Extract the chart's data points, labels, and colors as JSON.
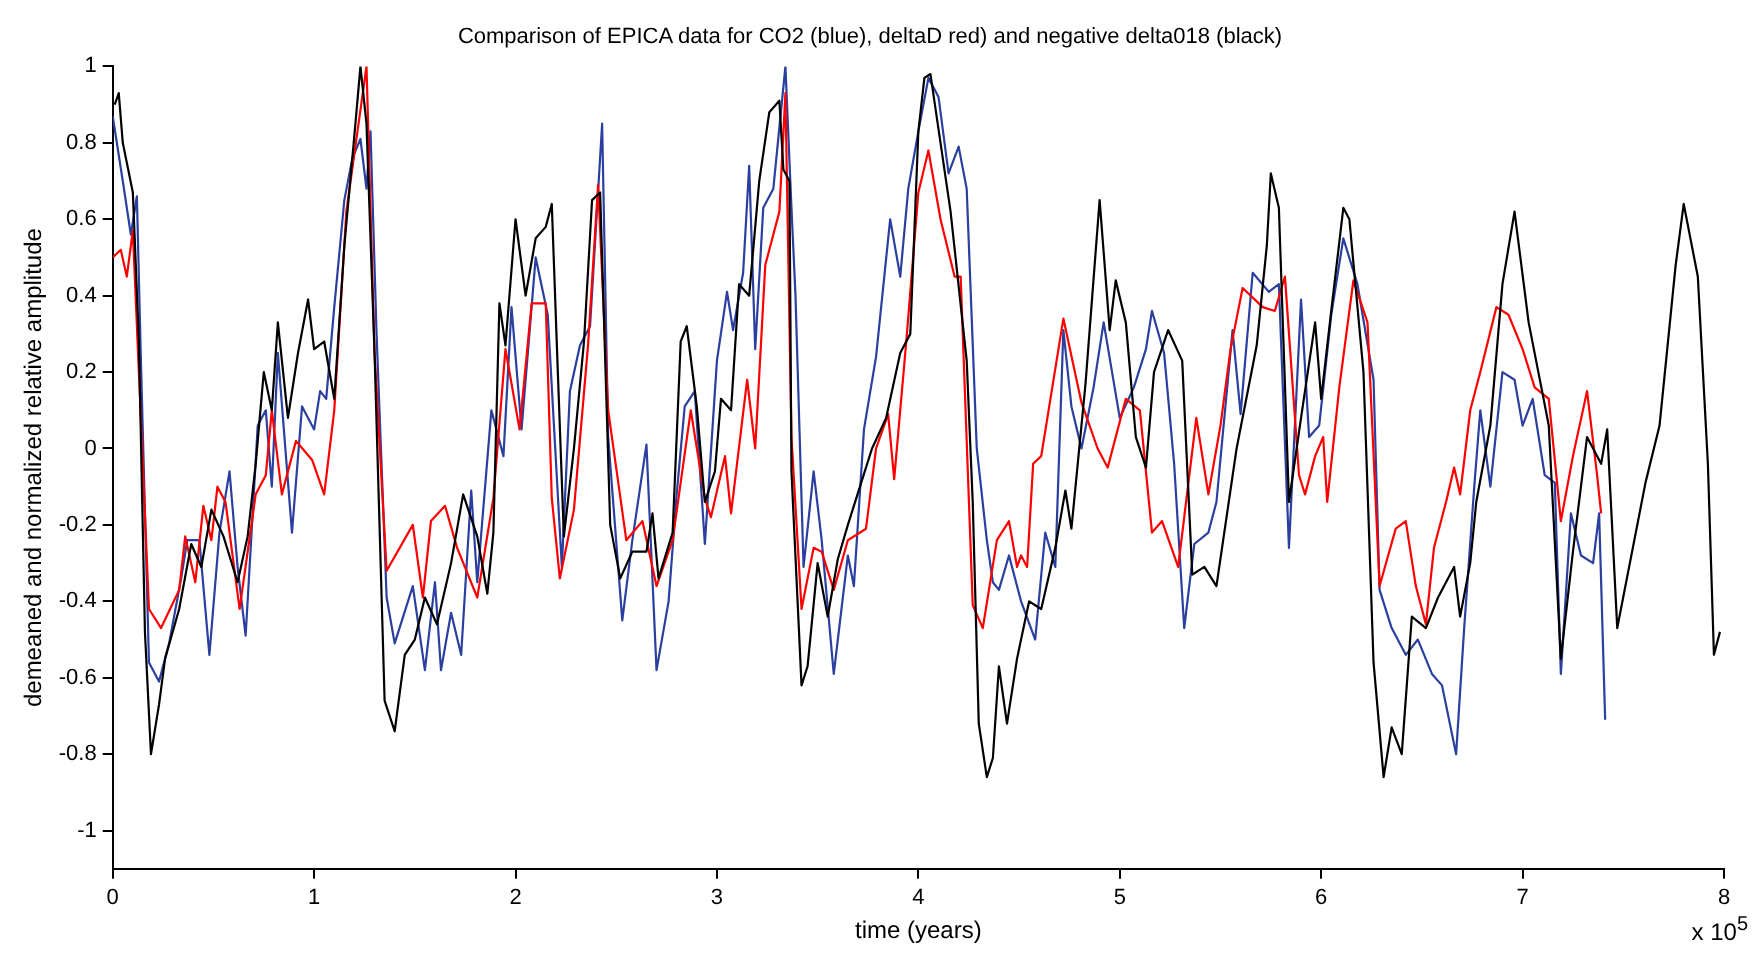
{
  "chart_data": {
    "type": "line",
    "title": "Comparison of EPICA data for CO2 (blue), deltaD red) and negative delta018 (black)",
    "xlabel": "time (years)",
    "ylabel": "demeaned and normalized relative amplitude",
    "annotations": [
      "x 10$^{5}$"
    ],
    "xlim": [
      0,
      8
    ],
    "xticks": [
      0,
      1,
      2,
      3,
      4,
      5,
      6,
      7,
      8
    ],
    "ylim": [
      -1.1,
      1
    ],
    "yticks": [
      -1,
      -0.8,
      -0.6,
      -0.4,
      -0.2,
      0,
      0.2,
      0.4,
      0.6,
      0.8,
      1
    ],
    "grid": false,
    "legend": false,
    "marker": "none",
    "line_style": "solid",
    "series": [
      {
        "color": "#000000",
        "x": [
          0.01,
          0.03,
          0.05,
          0.1,
          0.13,
          0.16,
          0.19,
          0.23,
          0.26,
          0.33,
          0.39,
          0.44,
          0.49,
          0.55,
          0.62,
          0.67,
          0.71,
          0.75,
          0.79,
          0.82,
          0.87,
          0.92,
          0.97,
          1.0,
          1.05,
          1.1,
          1.15,
          1.2,
          1.23,
          1.26,
          1.3,
          1.35,
          1.4,
          1.45,
          1.5,
          1.55,
          1.61,
          1.68,
          1.74,
          1.81,
          1.86,
          1.89,
          1.92,
          1.95,
          2.0,
          2.05,
          2.1,
          2.15,
          2.18,
          2.21,
          2.24,
          2.29,
          2.34,
          2.38,
          2.42,
          2.47,
          2.52,
          2.58,
          2.65,
          2.68,
          2.71,
          2.78,
          2.82,
          2.85,
          2.9,
          2.94,
          2.99,
          3.02,
          3.07,
          3.11,
          3.16,
          3.21,
          3.26,
          3.31,
          3.33,
          3.36,
          3.37,
          3.42,
          3.45,
          3.5,
          3.55,
          3.6,
          3.65,
          3.71,
          3.77,
          3.84,
          3.91,
          3.96,
          4.0,
          4.03,
          4.06,
          4.16,
          4.24,
          4.27,
          4.3,
          4.34,
          4.37,
          4.4,
          4.44,
          4.49,
          4.55,
          4.61,
          4.68,
          4.73,
          4.76,
          4.83,
          4.9,
          4.95,
          4.98,
          5.03,
          5.08,
          5.13,
          5.17,
          5.24,
          5.31,
          5.36,
          5.42,
          5.48,
          5.58,
          5.68,
          5.73,
          5.75,
          5.79,
          5.84,
          5.9,
          5.97,
          6.0,
          6.05,
          6.11,
          6.14,
          6.21,
          6.26,
          6.31,
          6.35,
          6.4,
          6.45,
          6.52,
          6.58,
          6.66,
          6.69,
          6.74,
          6.77,
          6.84,
          6.9,
          6.96,
          7.03,
          7.13,
          7.19,
          7.25,
          7.32,
          7.39,
          7.42,
          7.47,
          7.61,
          7.68,
          7.76,
          7.8,
          7.87,
          7.92,
          7.95,
          7.98
        ],
        "values": [
          0.9,
          0.93,
          0.8,
          0.67,
          0.28,
          -0.48,
          -0.8,
          -0.67,
          -0.55,
          -0.42,
          -0.25,
          -0.31,
          -0.16,
          -0.23,
          -0.35,
          -0.23,
          -0.04,
          0.2,
          0.1,
          0.33,
          0.08,
          0.25,
          0.39,
          0.26,
          0.28,
          0.13,
          0.53,
          0.82,
          1.0,
          0.85,
          0.25,
          -0.66,
          -0.74,
          -0.54,
          -0.5,
          -0.39,
          -0.46,
          -0.3,
          -0.12,
          -0.23,
          -0.38,
          -0.22,
          0.38,
          0.27,
          0.6,
          0.4,
          0.55,
          0.58,
          0.64,
          0.2,
          -0.23,
          0.0,
          0.28,
          0.65,
          0.67,
          -0.2,
          -0.34,
          -0.27,
          -0.27,
          -0.17,
          -0.34,
          -0.22,
          0.28,
          0.32,
          0.11,
          -0.14,
          -0.06,
          0.13,
          0.1,
          0.43,
          0.4,
          0.7,
          0.88,
          0.91,
          0.73,
          0.7,
          -0.06,
          -0.62,
          -0.57,
          -0.3,
          -0.44,
          -0.29,
          -0.2,
          -0.1,
          0.0,
          0.08,
          0.25,
          0.3,
          0.83,
          0.97,
          0.98,
          0.62,
          0.23,
          -0.14,
          -0.72,
          -0.86,
          -0.81,
          -0.57,
          -0.72,
          -0.55,
          -0.4,
          -0.42,
          -0.26,
          -0.11,
          -0.21,
          0.17,
          0.65,
          0.31,
          0.44,
          0.33,
          0.03,
          -0.05,
          0.2,
          0.31,
          0.23,
          -0.33,
          -0.31,
          -0.36,
          0.0,
          0.27,
          0.53,
          0.72,
          0.63,
          -0.14,
          0.08,
          0.33,
          0.13,
          0.36,
          0.63,
          0.6,
          0.2,
          -0.56,
          -0.86,
          -0.73,
          -0.8,
          -0.44,
          -0.47,
          -0.39,
          -0.31,
          -0.44,
          -0.3,
          -0.14,
          0.06,
          0.43,
          0.62,
          0.33,
          0.06,
          -0.55,
          -0.27,
          0.03,
          -0.04,
          0.05,
          -0.47,
          -0.09,
          0.06,
          0.48,
          0.64,
          0.45,
          -0.04,
          -0.54,
          -0.48
        ]
      },
      {
        "color": "#ff0000",
        "x": [
          0,
          0.04,
          0.07,
          0.1,
          0.18,
          0.24,
          0.33,
          0.36,
          0.41,
          0.45,
          0.49,
          0.52,
          0.56,
          0.63,
          0.71,
          0.76,
          0.79,
          0.84,
          0.91,
          0.99,
          1.05,
          1.1,
          1.16,
          1.26,
          1.3,
          1.36,
          1.49,
          1.54,
          1.58,
          1.65,
          1.71,
          1.81,
          1.89,
          1.95,
          2.02,
          2.08,
          2.15,
          2.18,
          2.22,
          2.29,
          2.36,
          2.41,
          2.46,
          2.55,
          2.63,
          2.7,
          2.78,
          2.87,
          2.94,
          2.97,
          3.04,
          3.07,
          3.15,
          3.19,
          3.24,
          3.31,
          3.34,
          3.37,
          3.42,
          3.48,
          3.52,
          3.58,
          3.65,
          3.74,
          3.79,
          3.85,
          3.88,
          3.94,
          4.0,
          4.05,
          4.11,
          4.18,
          4.21,
          4.27,
          4.32,
          4.39,
          4.45,
          4.49,
          4.51,
          4.54,
          4.57,
          4.61,
          4.72,
          4.81,
          4.89,
          4.94,
          5.03,
          5.1,
          5.16,
          5.21,
          5.29,
          5.38,
          5.44,
          5.5,
          5.55,
          5.61,
          5.71,
          5.77,
          5.82,
          5.89,
          5.92,
          5.97,
          6.01,
          6.03,
          6.09,
          6.16,
          6.23,
          6.29,
          6.37,
          6.42,
          6.47,
          6.52,
          6.56,
          6.62,
          6.66,
          6.69,
          6.74,
          6.79,
          6.87,
          6.93,
          7.0,
          7.06,
          7.13,
          7.19,
          7.25,
          7.32,
          7.37,
          7.39
        ],
        "values": [
          0.5,
          0.52,
          0.45,
          0.57,
          -0.42,
          -0.47,
          -0.37,
          -0.23,
          -0.35,
          -0.15,
          -0.24,
          -0.1,
          -0.14,
          -0.42,
          -0.12,
          -0.07,
          0.1,
          -0.12,
          0.02,
          -0.03,
          -0.12,
          0.1,
          0.62,
          1.0,
          0.25,
          -0.32,
          -0.2,
          -0.39,
          -0.19,
          -0.15,
          -0.26,
          -0.39,
          -0.13,
          0.26,
          0.05,
          0.38,
          0.38,
          -0.13,
          -0.34,
          -0.16,
          0.27,
          0.69,
          0.1,
          -0.24,
          -0.19,
          -0.36,
          -0.24,
          0.1,
          -0.13,
          -0.18,
          -0.02,
          -0.17,
          0.18,
          0.0,
          0.48,
          0.62,
          0.93,
          0.03,
          -0.42,
          -0.26,
          -0.27,
          -0.37,
          -0.24,
          -0.21,
          0.0,
          0.09,
          -0.08,
          0.28,
          0.67,
          0.78,
          0.6,
          0.45,
          0.45,
          -0.41,
          -0.47,
          -0.24,
          -0.19,
          -0.31,
          -0.28,
          -0.31,
          -0.04,
          -0.02,
          0.34,
          0.12,
          0.0,
          -0.05,
          0.13,
          0.1,
          -0.22,
          -0.19,
          -0.31,
          0.08,
          -0.12,
          0.06,
          0.26,
          0.42,
          0.37,
          0.36,
          0.45,
          -0.07,
          -0.12,
          -0.02,
          0.03,
          -0.14,
          0.16,
          0.44,
          0.33,
          -0.36,
          -0.21,
          -0.19,
          -0.36,
          -0.46,
          -0.26,
          -0.14,
          -0.05,
          -0.12,
          0.1,
          0.2,
          0.37,
          0.35,
          0.26,
          0.16,
          0.13,
          -0.19,
          -0.02,
          0.15,
          -0.07,
          -0.17
        ]
      },
      {
        "color": "#2a3f9f",
        "x": [
          0,
          0.05,
          0.09,
          0.12,
          0.14,
          0.18,
          0.23,
          0.28,
          0.34,
          0.37,
          0.43,
          0.48,
          0.53,
          0.58,
          0.62,
          0.66,
          0.72,
          0.76,
          0.79,
          0.82,
          0.89,
          0.94,
          1.0,
          1.03,
          1.06,
          1.1,
          1.15,
          1.19,
          1.23,
          1.26,
          1.28,
          1.31,
          1.36,
          1.4,
          1.49,
          1.55,
          1.6,
          1.63,
          1.68,
          1.73,
          1.78,
          1.81,
          1.88,
          1.94,
          1.98,
          2.03,
          2.1,
          2.16,
          2.23,
          2.27,
          2.32,
          2.37,
          2.43,
          2.46,
          2.53,
          2.58,
          2.65,
          2.7,
          2.76,
          2.8,
          2.84,
          2.89,
          2.94,
          3.0,
          3.05,
          3.08,
          3.13,
          3.16,
          3.19,
          3.23,
          3.28,
          3.34,
          3.37,
          3.39,
          3.43,
          3.48,
          3.52,
          3.58,
          3.65,
          3.68,
          3.73,
          3.79,
          3.86,
          3.91,
          3.95,
          4.0,
          4.05,
          4.1,
          4.15,
          4.2,
          4.24,
          4.29,
          4.34,
          4.37,
          4.4,
          4.45,
          4.51,
          4.58,
          4.63,
          4.68,
          4.72,
          4.76,
          4.81,
          4.87,
          4.92,
          5.0,
          5.07,
          5.13,
          5.16,
          5.22,
          5.27,
          5.32,
          5.37,
          5.44,
          5.48,
          5.56,
          5.6,
          5.66,
          5.74,
          5.79,
          5.84,
          5.9,
          5.94,
          5.99,
          6.05,
          6.11,
          6.18,
          6.26,
          6.29,
          6.35,
          6.42,
          6.48,
          6.55,
          6.6,
          6.67,
          6.71,
          6.76,
          6.79,
          6.84,
          6.9,
          6.96,
          7.0,
          7.05,
          7.11,
          7.16,
          7.19,
          7.24,
          7.29,
          7.35,
          7.38,
          7.41
        ],
        "values": [
          0.87,
          0.7,
          0.56,
          0.66,
          0.23,
          -0.56,
          -0.61,
          -0.51,
          -0.34,
          -0.24,
          -0.24,
          -0.54,
          -0.22,
          -0.06,
          -0.31,
          -0.49,
          0.06,
          0.1,
          -0.1,
          0.25,
          -0.22,
          0.11,
          0.05,
          0.15,
          0.13,
          0.37,
          0.65,
          0.76,
          0.81,
          0.68,
          0.83,
          0.3,
          -0.39,
          -0.51,
          -0.36,
          -0.58,
          -0.35,
          -0.58,
          -0.43,
          -0.54,
          -0.11,
          -0.35,
          0.1,
          -0.02,
          0.37,
          0.05,
          0.5,
          0.35,
          -0.31,
          0.15,
          0.27,
          0.32,
          0.85,
          0.03,
          -0.45,
          -0.24,
          0.01,
          -0.58,
          -0.4,
          -0.12,
          0.11,
          0.15,
          -0.25,
          0.23,
          0.41,
          0.31,
          0.46,
          0.74,
          0.26,
          0.63,
          0.68,
          1.0,
          0.63,
          0.4,
          -0.31,
          -0.06,
          -0.24,
          -0.59,
          -0.28,
          -0.36,
          0.05,
          0.24,
          0.6,
          0.45,
          0.68,
          0.83,
          0.97,
          0.92,
          0.72,
          0.79,
          0.68,
          0.0,
          -0.24,
          -0.35,
          -0.37,
          -0.28,
          -0.4,
          -0.5,
          -0.22,
          -0.31,
          0.31,
          0.11,
          0.0,
          0.16,
          0.33,
          0.08,
          0.16,
          0.26,
          0.36,
          0.25,
          -0.04,
          -0.47,
          -0.25,
          -0.22,
          -0.14,
          0.31,
          0.09,
          0.46,
          0.41,
          0.43,
          -0.26,
          0.39,
          0.03,
          0.06,
          0.35,
          0.55,
          0.43,
          0.18,
          -0.37,
          -0.47,
          -0.54,
          -0.5,
          -0.59,
          -0.62,
          -0.8,
          -0.47,
          -0.1,
          0.1,
          -0.1,
          0.2,
          0.18,
          0.06,
          0.13,
          -0.07,
          -0.09,
          -0.59,
          -0.17,
          -0.28,
          -0.3,
          -0.17,
          -0.71
        ]
      }
    ]
  }
}
